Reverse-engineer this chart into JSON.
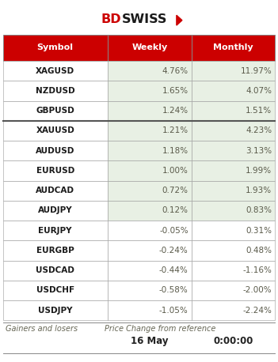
{
  "header": [
    "Symbol",
    "Weekly",
    "Monthly"
  ],
  "rows": [
    [
      "XAGUSD",
      "4.76%",
      "11.97%"
    ],
    [
      "NZDUSD",
      "1.65%",
      "4.07%"
    ],
    [
      "GBPUSD",
      "1.24%",
      "1.51%"
    ],
    [
      "XAUUSD",
      "1.21%",
      "4.23%"
    ],
    [
      "AUDUSD",
      "1.18%",
      "3.13%"
    ],
    [
      "EURUSD",
      "1.00%",
      "1.99%"
    ],
    [
      "AUDCAD",
      "0.72%",
      "1.93%"
    ],
    [
      "AUDJPY",
      "0.12%",
      "0.83%"
    ],
    [
      "EURJPY",
      "-0.05%",
      "0.31%"
    ],
    [
      "EURGBP",
      "-0.24%",
      "0.48%"
    ],
    [
      "USDCAD",
      "-0.44%",
      "-1.16%"
    ],
    [
      "USDCHF",
      "-0.58%",
      "-2.00%"
    ],
    [
      "USDJPY",
      "-1.05%",
      "-2.24%"
    ]
  ],
  "weekly_values": [
    4.76,
    1.65,
    1.24,
    1.21,
    1.18,
    1.0,
    0.72,
    0.12,
    -0.05,
    -0.24,
    -0.44,
    -0.58,
    -1.05
  ],
  "thick_row": 3,
  "header_bg": "#CC0000",
  "header_fg": "#FFFFFF",
  "pos_bg": "#E8F0E4",
  "neg_bg": "#FFFFFF",
  "symbol_fg": "#1a1a1a",
  "value_fg": "#5a5a4a",
  "footer_left": "Gainers and losers",
  "footer_right": "Price Change from reference",
  "footer_date": "16 May",
  "footer_time": "0:00:00",
  "bg_color": "#FFFFFF",
  "fig_width": 3.51,
  "fig_height": 4.58,
  "dpi": 100
}
